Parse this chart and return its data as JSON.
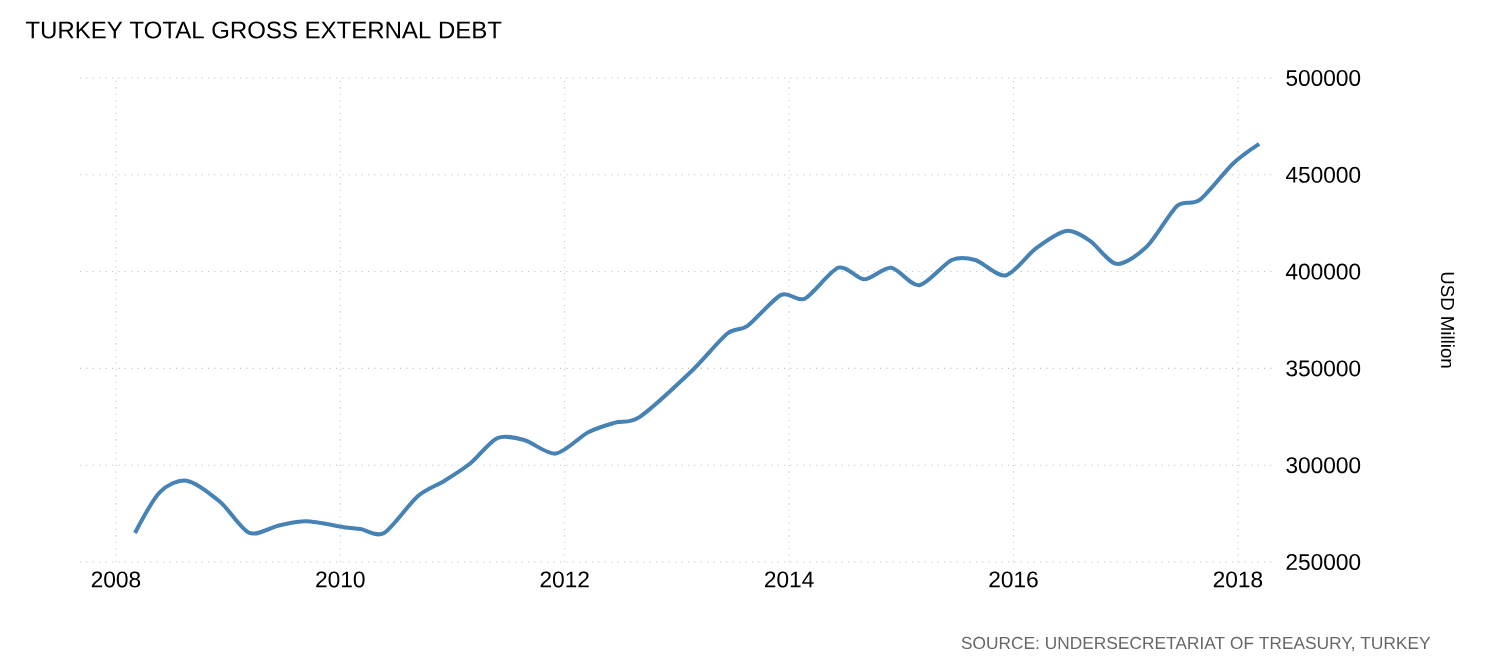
{
  "chart_data": {
    "type": "line",
    "title": "TURKEY TOTAL GROSS EXTERNAL DEBT",
    "ylabel": "USD Million",
    "annotations": [
      "SOURCE: UNDERSECRETARIAT OF TREASURY, TURKEY"
    ],
    "x": [
      2008.17,
      2008.39,
      2008.63,
      2008.93,
      2009.19,
      2009.46,
      2009.7,
      2010.03,
      2010.18,
      2010.39,
      2010.69,
      2010.93,
      2011.16,
      2011.4,
      2011.64,
      2011.92,
      2012.21,
      2012.45,
      2012.67,
      2013.12,
      2013.45,
      2013.63,
      2013.93,
      2014.14,
      2014.44,
      2014.67,
      2014.91,
      2015.16,
      2015.45,
      2015.66,
      2015.93,
      2016.2,
      2016.47,
      2016.68,
      2016.92,
      2017.19,
      2017.46,
      2017.66,
      2017.96,
      2018.19
    ],
    "values": [
      265000,
      286000,
      292000,
      281000,
      265000,
      269000,
      271000,
      268000,
      267000,
      265000,
      284000,
      292000,
      301000,
      314000,
      313000,
      306000,
      317000,
      322000,
      325000,
      348000,
      368000,
      372000,
      388000,
      386000,
      402000,
      396000,
      402000,
      393000,
      406000,
      406000,
      398000,
      412000,
      421000,
      416000,
      404000,
      413000,
      434000,
      437000,
      456000,
      466000
    ],
    "color": "#4682b4",
    "xlim": [
      2007.68,
      2018.34
    ],
    "ylim": [
      250000,
      500000
    ],
    "xticks": [
      2008,
      2010,
      2012,
      2014,
      2016,
      2018
    ],
    "yticks": [
      250000,
      300000,
      350000,
      400000,
      450000,
      500000
    ],
    "grid": true
  }
}
